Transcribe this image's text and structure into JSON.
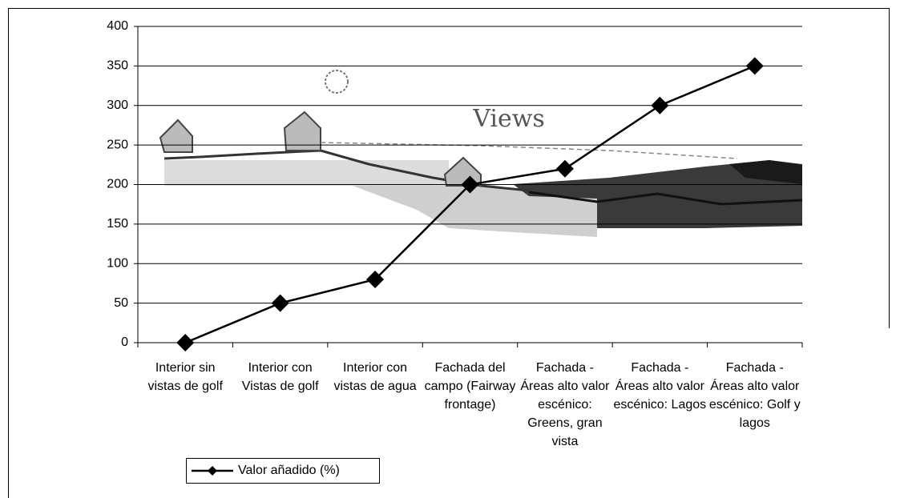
{
  "chart_data": {
    "type": "line",
    "categories": [
      "Interior sin vistas de golf",
      "Interior con Vistas de golf",
      "Interior con vistas de agua",
      "Fachada del campo (Fairway frontage)",
      "Fachada - Áreas alto valor escénico: Greens, gran vista",
      "Fachada - Áreas alto valor escénico: Lagos",
      "Fachada - Áreas alto valor escénico: Golf y lagos"
    ],
    "series": [
      {
        "name": "Valor añadido (%)",
        "color": "#000000",
        "values": [
          0,
          50,
          80,
          200,
          220,
          300,
          350
        ]
      }
    ],
    "ylim": [
      0,
      400
    ],
    "yticks": [
      0,
      50,
      100,
      150,
      200,
      250,
      300,
      350,
      400
    ],
    "grid": true,
    "legend": "bottom-left",
    "annotation": "Views"
  }
}
